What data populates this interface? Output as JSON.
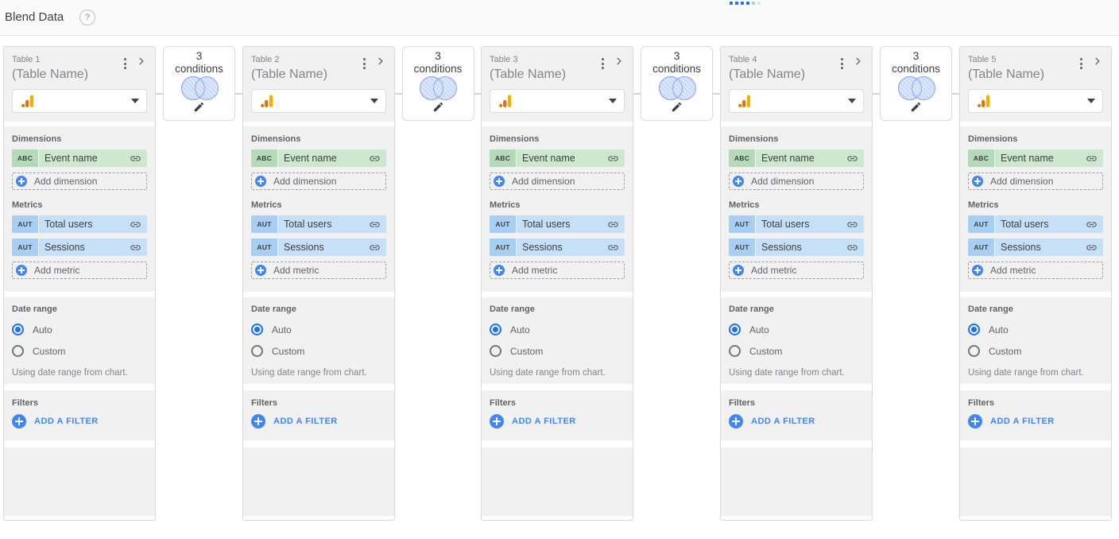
{
  "header": {
    "title": "Blend Data",
    "help_glyph": "?"
  },
  "loading_indicator": {
    "color": "#1a73e8",
    "dots_solid": 4,
    "dots_faded": 2
  },
  "colors": {
    "accent_blue": "#1a73e8",
    "button_blue": "#4285f4",
    "dimension_green": "#cde8ce",
    "dimension_badge_green": "#b4dab7",
    "metric_blue": "#c6e0f8",
    "metric_badge_blue": "#a8cef2",
    "ga_logo_amber": "#f9ab00",
    "ga_logo_orange": "#e37400"
  },
  "joins": [
    {
      "count": "3",
      "label": "conditions"
    },
    {
      "count": "3",
      "label": "conditions"
    },
    {
      "count": "3",
      "label": "conditions"
    },
    {
      "count": "3",
      "label": "conditions"
    }
  ],
  "tables": [
    {
      "title": "Table 1",
      "subtitle": "(Table Name)",
      "source": {
        "icon": "google-analytics-icon"
      },
      "dimensions": {
        "label": "Dimensions",
        "add_label": "Add dimension",
        "fields": [
          {
            "type_badge": "ABC",
            "name": "Event name"
          }
        ]
      },
      "metrics": {
        "label": "Metrics",
        "add_label": "Add metric",
        "fields": [
          {
            "type_badge": "AUT",
            "name": "Total users"
          },
          {
            "type_badge": "AUT",
            "name": "Sessions"
          }
        ]
      },
      "date_range": {
        "label": "Date range",
        "options": [
          {
            "label": "Auto",
            "selected": true
          },
          {
            "label": "Custom",
            "selected": false
          }
        ],
        "note": "Using date range from chart."
      },
      "filters": {
        "label": "Filters",
        "add_label": "ADD A FILTER"
      }
    },
    {
      "title": "Table 2",
      "subtitle": "(Table Name)",
      "source": {
        "icon": "google-analytics-icon"
      },
      "dimensions": {
        "label": "Dimensions",
        "add_label": "Add dimension",
        "fields": [
          {
            "type_badge": "ABC",
            "name": "Event name"
          }
        ]
      },
      "metrics": {
        "label": "Metrics",
        "add_label": "Add metric",
        "fields": [
          {
            "type_badge": "AUT",
            "name": "Total users"
          },
          {
            "type_badge": "AUT",
            "name": "Sessions"
          }
        ]
      },
      "date_range": {
        "label": "Date range",
        "options": [
          {
            "label": "Auto",
            "selected": true
          },
          {
            "label": "Custom",
            "selected": false
          }
        ],
        "note": "Using date range from chart."
      },
      "filters": {
        "label": "Filters",
        "add_label": "ADD A FILTER"
      }
    },
    {
      "title": "Table 3",
      "subtitle": "(Table Name)",
      "source": {
        "icon": "google-analytics-icon"
      },
      "dimensions": {
        "label": "Dimensions",
        "add_label": "Add dimension",
        "fields": [
          {
            "type_badge": "ABC",
            "name": "Event name"
          }
        ]
      },
      "metrics": {
        "label": "Metrics",
        "add_label": "Add metric",
        "fields": [
          {
            "type_badge": "AUT",
            "name": "Total users"
          },
          {
            "type_badge": "AUT",
            "name": "Sessions"
          }
        ]
      },
      "date_range": {
        "label": "Date range",
        "options": [
          {
            "label": "Auto",
            "selected": true
          },
          {
            "label": "Custom",
            "selected": false
          }
        ],
        "note": "Using date range from chart."
      },
      "filters": {
        "label": "Filters",
        "add_label": "ADD A FILTER"
      }
    },
    {
      "title": "Table 4",
      "subtitle": "(Table Name)",
      "source": {
        "icon": "google-analytics-icon"
      },
      "dimensions": {
        "label": "Dimensions",
        "add_label": "Add dimension",
        "fields": [
          {
            "type_badge": "ABC",
            "name": "Event name"
          }
        ]
      },
      "metrics": {
        "label": "Metrics",
        "add_label": "Add metric",
        "fields": [
          {
            "type_badge": "AUT",
            "name": "Total users"
          },
          {
            "type_badge": "AUT",
            "name": "Sessions"
          }
        ]
      },
      "date_range": {
        "label": "Date range",
        "options": [
          {
            "label": "Auto",
            "selected": true
          },
          {
            "label": "Custom",
            "selected": false
          }
        ],
        "note": "Using date range from chart."
      },
      "filters": {
        "label": "Filters",
        "add_label": "ADD A FILTER"
      }
    },
    {
      "title": "Table 5",
      "subtitle": "(Table Name)",
      "source": {
        "icon": "google-analytics-icon"
      },
      "dimensions": {
        "label": "Dimensions",
        "add_label": "Add dimension",
        "fields": [
          {
            "type_badge": "ABC",
            "name": "Event name"
          }
        ]
      },
      "metrics": {
        "label": "Metrics",
        "add_label": "Add metric",
        "fields": [
          {
            "type_badge": "AUT",
            "name": "Total users"
          },
          {
            "type_badge": "AUT",
            "name": "Sessions"
          }
        ]
      },
      "date_range": {
        "label": "Date range",
        "options": [
          {
            "label": "Auto",
            "selected": true
          },
          {
            "label": "Custom",
            "selected": false
          }
        ],
        "note": "Using date range from chart."
      },
      "filters": {
        "label": "Filters",
        "add_label": "ADD A FILTER"
      }
    }
  ]
}
